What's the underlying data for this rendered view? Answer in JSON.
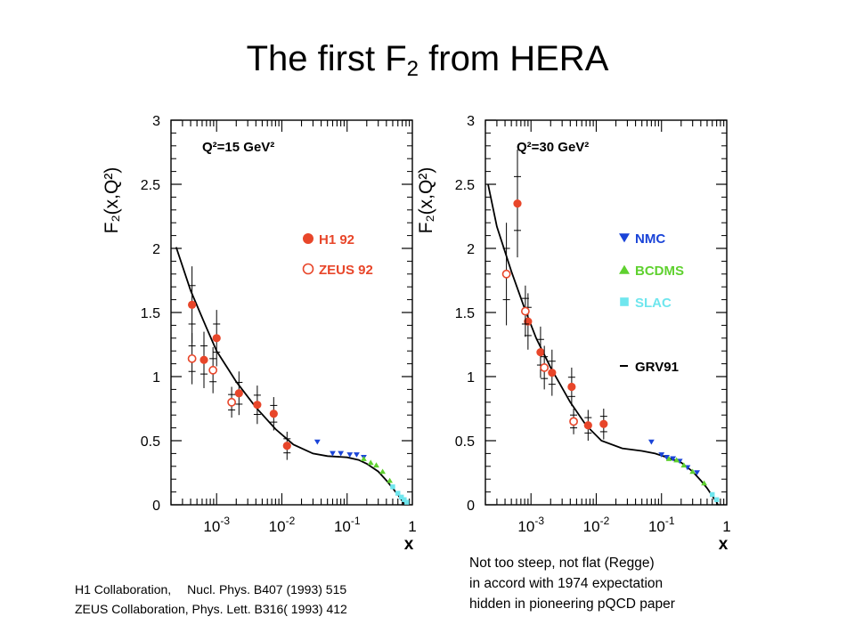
{
  "slide": {
    "title_main": "The first F",
    "title_sub": "2",
    "title_rest": " from HERA"
  },
  "references": {
    "line1_left": "H1 Collaboration,",
    "line1_right": "Nucl. Phys. B407 (1993) 515",
    "line2": "ZEUS Collaboration,  Phys. Lett. B316( 1993) 412"
  },
  "comment": {
    "line1": "Not too steep, not flat (Regge)",
    "line2": "in accord with 1974 expectation",
    "line3": "hidden in pioneering  pQCD paper"
  },
  "colors": {
    "h1": "#e8462a",
    "zeus": "#e8462a",
    "nmc": "#1a44d8",
    "bcdms": "#5fd12f",
    "slac": "#6fe6ee",
    "curve": "#000000"
  },
  "chart_data": [
    {
      "type": "scatter",
      "annotation": "Q²=15 GeV²",
      "ylabel": "F₂(x,Q²)",
      "xlabel": "x",
      "xscale": "log",
      "xlim": [
        0.0002,
        1
      ],
      "ylim": [
        0,
        3
      ],
      "yticks": [
        "0",
        "0.5",
        "1",
        "1.5",
        "2",
        "2.5",
        "3"
      ],
      "xticks": [
        {
          "value": 0.001,
          "label": "10",
          "exp": "-3"
        },
        {
          "value": 0.01,
          "label": "10",
          "exp": "-2"
        },
        {
          "value": 0.1,
          "label": "10",
          "exp": "-1"
        },
        {
          "value": 1,
          "label": "1",
          "exp": ""
        }
      ],
      "legend": [
        {
          "label": "H1 92",
          "marker": "filled-circle",
          "color": "#e8462a"
        },
        {
          "label": "ZEUS 92",
          "marker": "open-circle",
          "color": "#e8462a"
        }
      ],
      "series": [
        {
          "name": "H1 92",
          "marker": "filled-circle",
          "points": [
            {
              "x": 0.00042,
              "y": 1.56,
              "err": 0.3
            },
            {
              "x": 0.00064,
              "y": 1.13,
              "err": 0.22
            },
            {
              "x": 0.001,
              "y": 1.3,
              "err": 0.22
            },
            {
              "x": 0.0022,
              "y": 0.87,
              "err": 0.17
            },
            {
              "x": 0.0042,
              "y": 0.78,
              "err": 0.15
            },
            {
              "x": 0.0075,
              "y": 0.71,
              "err": 0.13
            },
            {
              "x": 0.012,
              "y": 0.46,
              "err": 0.11
            }
          ]
        },
        {
          "name": "ZEUS 92",
          "marker": "open-circle",
          "points": [
            {
              "x": 0.00042,
              "y": 1.14,
              "err": 0.2
            },
            {
              "x": 0.00088,
              "y": 1.05,
              "err": 0.18
            },
            {
              "x": 0.0017,
              "y": 0.8,
              "err": 0.12
            }
          ]
        },
        {
          "name": "NMC",
          "marker": "down-triangle",
          "points": [
            {
              "x": 0.035,
              "y": 0.49
            },
            {
              "x": 0.06,
              "y": 0.4
            },
            {
              "x": 0.08,
              "y": 0.4
            },
            {
              "x": 0.11,
              "y": 0.39
            },
            {
              "x": 0.14,
              "y": 0.39
            },
            {
              "x": 0.18,
              "y": 0.37
            }
          ]
        },
        {
          "name": "BCDMS",
          "marker": "up-triangle",
          "points": [
            {
              "x": 0.18,
              "y": 0.36
            },
            {
              "x": 0.23,
              "y": 0.33
            },
            {
              "x": 0.28,
              "y": 0.31
            },
            {
              "x": 0.35,
              "y": 0.26
            },
            {
              "x": 0.45,
              "y": 0.19
            }
          ]
        },
        {
          "name": "SLAC",
          "marker": "square",
          "points": [
            {
              "x": 0.5,
              "y": 0.14
            },
            {
              "x": 0.6,
              "y": 0.09
            },
            {
              "x": 0.68,
              "y": 0.06
            },
            {
              "x": 0.75,
              "y": 0.04
            },
            {
              "x": 0.82,
              "y": 0.02
            }
          ]
        },
        {
          "name": "GRV91",
          "marker": "line",
          "points": [
            {
              "x": 0.00024,
              "y": 2.01
            },
            {
              "x": 0.0004,
              "y": 1.67
            },
            {
              "x": 0.0007,
              "y": 1.38
            },
            {
              "x": 0.001,
              "y": 1.2
            },
            {
              "x": 0.002,
              "y": 0.96
            },
            {
              "x": 0.004,
              "y": 0.76
            },
            {
              "x": 0.008,
              "y": 0.59
            },
            {
              "x": 0.015,
              "y": 0.47
            },
            {
              "x": 0.03,
              "y": 0.4
            },
            {
              "x": 0.05,
              "y": 0.38
            },
            {
              "x": 0.1,
              "y": 0.37
            },
            {
              "x": 0.15,
              "y": 0.35
            },
            {
              "x": 0.2,
              "y": 0.32
            },
            {
              "x": 0.3,
              "y": 0.26
            },
            {
              "x": 0.4,
              "y": 0.19
            },
            {
              "x": 0.5,
              "y": 0.13
            },
            {
              "x": 0.6,
              "y": 0.08
            },
            {
              "x": 0.7,
              "y": 0.03
            },
            {
              "x": 0.76,
              "y": 0.0
            }
          ]
        }
      ]
    },
    {
      "type": "scatter",
      "annotation": "Q²=30 GeV²",
      "ylabel": "F₂(x,Q²)",
      "xlabel": "x",
      "xscale": "log",
      "xlim": [
        0.0002,
        1
      ],
      "ylim": [
        0,
        3
      ],
      "yticks": [
        "0",
        "0.5",
        "1",
        "1.5",
        "2",
        "2.5",
        "3"
      ],
      "xticks": [
        {
          "value": 0.001,
          "label": "10",
          "exp": "-3"
        },
        {
          "value": 0.01,
          "label": "10",
          "exp": "-2"
        },
        {
          "value": 0.1,
          "label": "10",
          "exp": "-1"
        },
        {
          "value": 1,
          "label": "1",
          "exp": ""
        }
      ],
      "legend": [
        {
          "label": "NMC",
          "marker": "down-triangle",
          "color": "#1a44d8"
        },
        {
          "label": "BCDMS",
          "marker": "up-triangle",
          "color": "#5fd12f"
        },
        {
          "label": "SLAC",
          "marker": "square",
          "color": "#6fe6ee"
        },
        {
          "label": "GRV91",
          "marker": "line",
          "color": "#000000"
        }
      ],
      "series": [
        {
          "name": "H1 92",
          "marker": "filled-circle",
          "points": [
            {
              "x": 0.00062,
              "y": 2.35,
              "err": 0.42
            },
            {
              "x": 0.0009,
              "y": 1.43,
              "err": 0.22
            },
            {
              "x": 0.0014,
              "y": 1.19,
              "err": 0.2
            },
            {
              "x": 0.0021,
              "y": 1.03,
              "err": 0.18
            },
            {
              "x": 0.0042,
              "y": 0.92,
              "err": 0.15
            },
            {
              "x": 0.0075,
              "y": 0.62,
              "err": 0.12
            },
            {
              "x": 0.013,
              "y": 0.63,
              "err": 0.12
            }
          ]
        },
        {
          "name": "ZEUS 92",
          "marker": "open-circle",
          "points": [
            {
              "x": 0.00042,
              "y": 1.8,
              "err": 0.4
            },
            {
              "x": 0.00082,
              "y": 1.51,
              "err": 0.2
            },
            {
              "x": 0.0016,
              "y": 1.07,
              "err": 0.17
            },
            {
              "x": 0.0045,
              "y": 0.65,
              "err": 0.1
            }
          ]
        },
        {
          "name": "NMC",
          "marker": "down-triangle",
          "points": [
            {
              "x": 0.07,
              "y": 0.49
            },
            {
              "x": 0.1,
              "y": 0.39
            },
            {
              "x": 0.12,
              "y": 0.37
            },
            {
              "x": 0.15,
              "y": 0.36
            },
            {
              "x": 0.19,
              "y": 0.34
            },
            {
              "x": 0.25,
              "y": 0.29
            },
            {
              "x": 0.35,
              "y": 0.25
            }
          ]
        },
        {
          "name": "BCDMS",
          "marker": "up-triangle",
          "points": [
            {
              "x": 0.13,
              "y": 0.36
            },
            {
              "x": 0.17,
              "y": 0.35
            },
            {
              "x": 0.22,
              "y": 0.31
            },
            {
              "x": 0.3,
              "y": 0.26
            },
            {
              "x": 0.45,
              "y": 0.17
            }
          ]
        },
        {
          "name": "SLAC",
          "marker": "square",
          "points": [
            {
              "x": 0.6,
              "y": 0.08
            },
            {
              "x": 0.7,
              "y": 0.04
            }
          ]
        },
        {
          "name": "GRV91",
          "marker": "line",
          "points": [
            {
              "x": 0.00022,
              "y": 2.5
            },
            {
              "x": 0.0003,
              "y": 2.17
            },
            {
              "x": 0.0005,
              "y": 1.82
            },
            {
              "x": 0.0008,
              "y": 1.53
            },
            {
              "x": 0.0012,
              "y": 1.3
            },
            {
              "x": 0.002,
              "y": 1.07
            },
            {
              "x": 0.004,
              "y": 0.8
            },
            {
              "x": 0.007,
              "y": 0.62
            },
            {
              "x": 0.012,
              "y": 0.5
            },
            {
              "x": 0.025,
              "y": 0.44
            },
            {
              "x": 0.05,
              "y": 0.42
            },
            {
              "x": 0.08,
              "y": 0.4
            },
            {
              "x": 0.12,
              "y": 0.37
            },
            {
              "x": 0.2,
              "y": 0.33
            },
            {
              "x": 0.3,
              "y": 0.26
            },
            {
              "x": 0.4,
              "y": 0.19
            },
            {
              "x": 0.5,
              "y": 0.13
            },
            {
              "x": 0.6,
              "y": 0.07
            },
            {
              "x": 0.7,
              "y": 0.02
            },
            {
              "x": 0.73,
              "y": 0.0
            }
          ]
        }
      ]
    }
  ]
}
